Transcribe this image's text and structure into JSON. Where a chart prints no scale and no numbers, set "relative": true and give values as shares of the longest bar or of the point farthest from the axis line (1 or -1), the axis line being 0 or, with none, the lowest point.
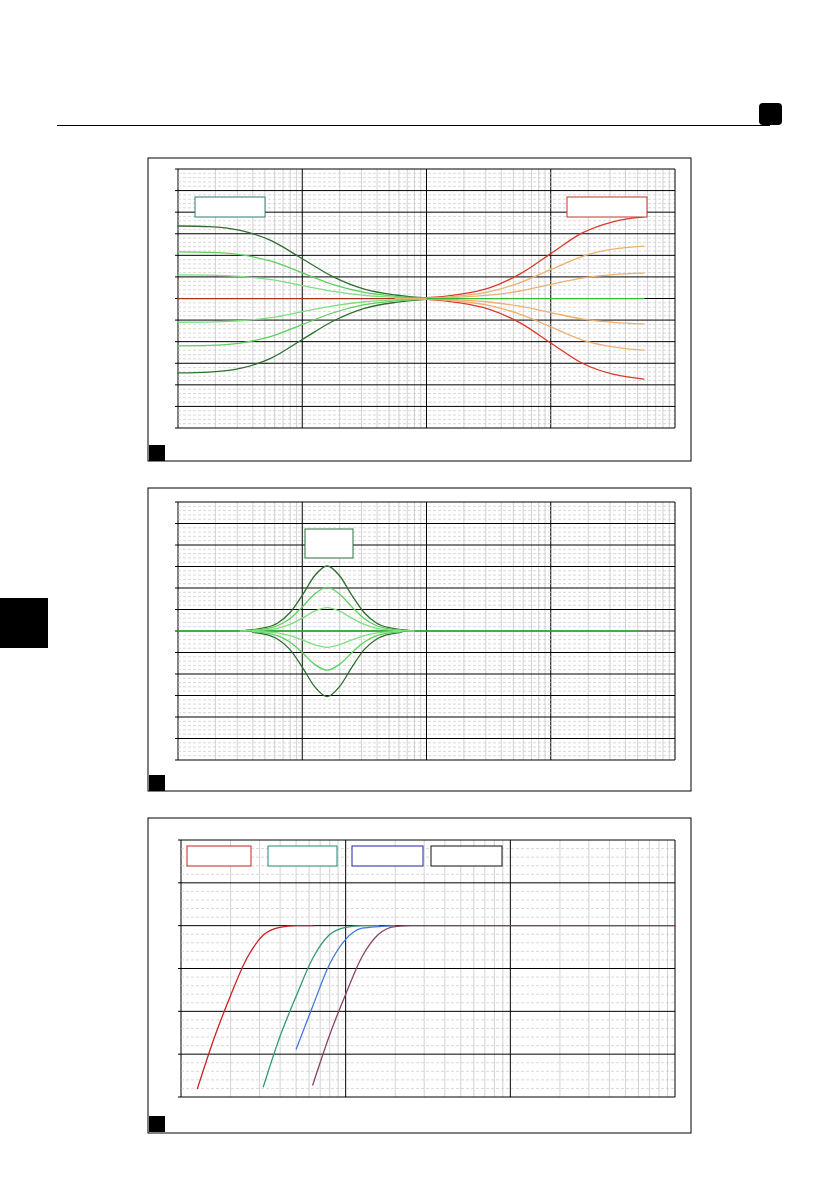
{
  "chart_data": [
    {
      "type": "line",
      "relative": true,
      "grid": true,
      "categories": [
        null,
        null,
        null,
        null,
        null,
        null,
        null,
        null,
        null,
        null,
        null,
        null,
        null,
        null,
        null,
        null,
        null
      ],
      "series": [
        {
          "color": "#b03020",
          "values": [
            0.613,
            0.613,
            0.613,
            0.613,
            0.613,
            0.613,
            0.613,
            0.613,
            0.613,
            null,
            null,
            null,
            null,
            null,
            null,
            null,
            null
          ]
        },
        {
          "color": "#2f6f2f",
          "values": [
            0.957,
            0.954,
            0.936,
            0.888,
            0.802,
            0.716,
            0.658,
            0.63,
            0.616,
            0.613,
            null,
            null,
            null,
            null,
            null,
            null,
            null
          ]
        },
        {
          "color": "#2f6f2f",
          "values": [
            0.261,
            0.265,
            0.282,
            0.331,
            0.419,
            0.507,
            0.567,
            0.595,
            0.609,
            0.613,
            null,
            null,
            null,
            null,
            null,
            null,
            null
          ]
        },
        {
          "color": "#5fcf5f",
          "values": [
            0.834,
            0.832,
            0.821,
            0.79,
            0.735,
            0.679,
            0.642,
            0.624,
            0.615,
            0.613,
            null,
            null,
            null,
            null,
            null,
            null,
            null
          ]
        },
        {
          "color": "#5fcf5f",
          "values": [
            0.389,
            0.391,
            0.402,
            0.434,
            0.49,
            0.546,
            0.584,
            0.602,
            0.611,
            0.613,
            null,
            null,
            null,
            null,
            null,
            null,
            null
          ]
        },
        {
          "color": "#7fdf7f",
          "values": [
            0.725,
            0.724,
            0.718,
            0.703,
            0.675,
            0.647,
            0.628,
            0.619,
            0.614,
            0.613,
            null,
            null,
            null,
            null,
            null,
            null,
            null
          ]
        },
        {
          "color": "#7fdf7f",
          "values": [
            0.501,
            0.502,
            0.508,
            0.523,
            0.551,
            0.579,
            0.598,
            0.607,
            0.612,
            0.613,
            null,
            null,
            null,
            null,
            null,
            null,
            null
          ]
        },
        {
          "color": "#d83a2a",
          "values": [
            null,
            null,
            null,
            null,
            null,
            null,
            null,
            0.613,
            0.617,
            0.632,
            0.663,
            0.729,
            0.826,
            0.923,
            0.977,
            1.0,
            null
          ]
        },
        {
          "color": "#d83a2a",
          "values": [
            null,
            null,
            null,
            null,
            null,
            null,
            null,
            0.613,
            0.609,
            0.594,
            0.563,
            0.499,
            0.403,
            0.308,
            0.255,
            0.232,
            null
          ]
        },
        {
          "color": "#eeb070",
          "values": [
            null,
            null,
            null,
            null,
            null,
            null,
            null,
            0.613,
            0.615,
            0.625,
            0.645,
            0.688,
            0.75,
            0.812,
            0.847,
            0.862,
            null
          ]
        },
        {
          "color": "#eeb070",
          "values": [
            null,
            null,
            null,
            null,
            null,
            null,
            null,
            0.613,
            0.611,
            0.601,
            0.581,
            0.54,
            0.479,
            0.418,
            0.384,
            0.369,
            null
          ]
        },
        {
          "color": "#eeb070",
          "values": [
            null,
            null,
            null,
            null,
            null,
            null,
            null,
            0.613,
            0.614,
            0.619,
            0.629,
            0.649,
            0.68,
            0.71,
            0.727,
            0.734,
            null
          ]
        },
        {
          "color": "#eeb070",
          "values": [
            null,
            null,
            null,
            null,
            null,
            null,
            null,
            0.613,
            0.612,
            0.607,
            0.597,
            0.577,
            0.547,
            0.517,
            0.5,
            0.493,
            null
          ]
        },
        {
          "color": "#33bb33",
          "values": [
            null,
            null,
            null,
            null,
            null,
            null,
            null,
            null,
            0.613,
            0.613,
            0.613,
            0.613,
            0.613,
            0.613,
            0.613,
            0.613,
            null
          ]
        }
      ]
    },
    {
      "type": "line",
      "relative": true,
      "grid": true,
      "categories": [
        null,
        null,
        null,
        null,
        null,
        null,
        null,
        null,
        null,
        null,
        null,
        null,
        null,
        null,
        null,
        null,
        null,
        null,
        null,
        null,
        null,
        null,
        null,
        null,
        null,
        null,
        null,
        null,
        null,
        null,
        null,
        null,
        null,
        null,
        null,
        null,
        null,
        null,
        null,
        null,
        null
      ],
      "series": [
        {
          "color": "#33bb33",
          "values": [
            0.665,
            0.665,
            0.665,
            0.665,
            0.665,
            0.665,
            0.665,
            0.665,
            0.665,
            0.665,
            0.665,
            0.665,
            0.665,
            0.665,
            0.665,
            0.665,
            0.665,
            0.665,
            0.665,
            0.665,
            0.665,
            0.665,
            0.665,
            0.665,
            0.665,
            0.665,
            0.665,
            0.665,
            0.665,
            0.665,
            0.665,
            0.665,
            0.665,
            0.665,
            0.665,
            0.665,
            0.665,
            0.665,
            null,
            null,
            null
          ]
        },
        {
          "color": "#2d6e2d",
          "values": [
            null,
            null,
            null,
            null,
            null,
            0.665,
            0.672,
            0.682,
            0.705,
            0.759,
            0.849,
            0.95,
            1.0,
            0.95,
            0.849,
            0.759,
            0.705,
            0.682,
            0.672,
            0.665,
            null,
            null,
            null,
            null,
            null,
            null,
            null,
            null,
            null,
            null,
            null,
            null,
            null,
            null,
            null,
            null,
            null,
            null,
            null,
            null,
            null
          ]
        },
        {
          "color": "#2d6e2d",
          "values": [
            null,
            null,
            null,
            null,
            null,
            null,
            0.658,
            0.648,
            0.624,
            0.57,
            0.479,
            0.378,
            0.327,
            0.378,
            0.479,
            0.57,
            0.624,
            0.648,
            0.658,
            null,
            null,
            null,
            null,
            null,
            null,
            null,
            null,
            null,
            null,
            null,
            null,
            null,
            null,
            null,
            null,
            null,
            null,
            null,
            null,
            null,
            null
          ]
        },
        {
          "color": "#5fcf5f",
          "values": [
            null,
            null,
            null,
            null,
            null,
            0.665,
            0.67,
            0.676,
            0.692,
            0.728,
            0.789,
            0.856,
            0.89,
            0.856,
            0.789,
            0.728,
            0.692,
            0.676,
            0.67,
            0.665,
            null,
            null,
            null,
            null,
            null,
            null,
            null,
            null,
            null,
            null,
            null,
            null,
            null,
            null,
            null,
            null,
            null,
            null,
            null,
            null,
            null
          ]
        },
        {
          "color": "#5fcf5f",
          "values": [
            null,
            null,
            null,
            null,
            null,
            null,
            0.661,
            0.655,
            0.641,
            0.608,
            0.554,
            0.493,
            0.463,
            0.493,
            0.554,
            0.608,
            0.641,
            0.655,
            0.661,
            null,
            null,
            null,
            null,
            null,
            null,
            null,
            null,
            null,
            null,
            null,
            null,
            null,
            null,
            null,
            null,
            null,
            null,
            null,
            null,
            null,
            null
          ]
        },
        {
          "color": "#7fdf7f",
          "values": [
            null,
            null,
            null,
            null,
            null,
            0.665,
            0.667,
            0.671,
            0.679,
            0.699,
            0.731,
            0.767,
            0.785,
            0.767,
            0.731,
            0.699,
            0.679,
            0.671,
            0.667,
            0.665,
            null,
            null,
            null,
            null,
            null,
            null,
            null,
            null,
            null,
            null,
            null,
            null,
            null,
            null,
            null,
            null,
            null,
            null,
            null,
            null,
            null
          ]
        },
        {
          "color": "#7fdf7f",
          "values": [
            null,
            null,
            null,
            null,
            null,
            null,
            0.663,
            0.661,
            0.655,
            0.641,
            0.619,
            0.594,
            0.581,
            0.594,
            0.619,
            0.641,
            0.655,
            0.661,
            0.663,
            null,
            null,
            null,
            null,
            null,
            null,
            null,
            null,
            null,
            null,
            null,
            null,
            null,
            null,
            null,
            null,
            null,
            null,
            null,
            null,
            null,
            null
          ]
        }
      ]
    },
    {
      "type": "line",
      "relative": true,
      "grid": true,
      "categories": [
        null,
        null,
        null,
        null,
        null,
        null,
        null,
        null,
        null,
        null,
        null,
        null,
        null,
        null,
        null,
        null,
        null,
        null,
        null,
        null,
        null,
        null,
        null,
        null,
        null,
        null,
        null,
        null,
        null,
        null,
        null
      ],
      "series": [
        {
          "color": "#cc2222",
          "values": [
            null,
            0.05,
            0.34,
            0.59,
            0.81,
            0.945,
            0.99,
            1,
            1,
            null,
            null,
            null,
            null,
            null,
            null,
            null,
            null,
            null,
            null,
            null,
            null,
            null,
            null,
            null,
            null,
            null,
            null,
            null,
            null,
            null,
            null
          ]
        },
        {
          "color": "#339977",
          "values": [
            null,
            null,
            null,
            null,
            null,
            0.06,
            0.35,
            0.59,
            0.81,
            0.945,
            0.99,
            1,
            1,
            null,
            null,
            null,
            null,
            null,
            null,
            null,
            null,
            null,
            null,
            null,
            null,
            null,
            null,
            null,
            null,
            null,
            null
          ]
        },
        {
          "color": "#4477dd",
          "values": [
            null,
            null,
            null,
            null,
            null,
            null,
            null,
            0.28,
            0.53,
            0.77,
            0.92,
            0.985,
            0.995,
            1,
            null,
            null,
            null,
            null,
            null,
            null,
            null,
            null,
            null,
            null,
            null,
            null,
            null,
            null,
            null,
            null,
            null
          ]
        },
        {
          "color": "#884466",
          "values": [
            null,
            null,
            null,
            null,
            null,
            null,
            null,
            null,
            0.07,
            0.355,
            0.6,
            0.82,
            0.95,
            0.995,
            1,
            1,
            1,
            1,
            1,
            1,
            1,
            1,
            1,
            1,
            1,
            1,
            1,
            1,
            1,
            1,
            1
          ]
        }
      ]
    }
  ]
}
